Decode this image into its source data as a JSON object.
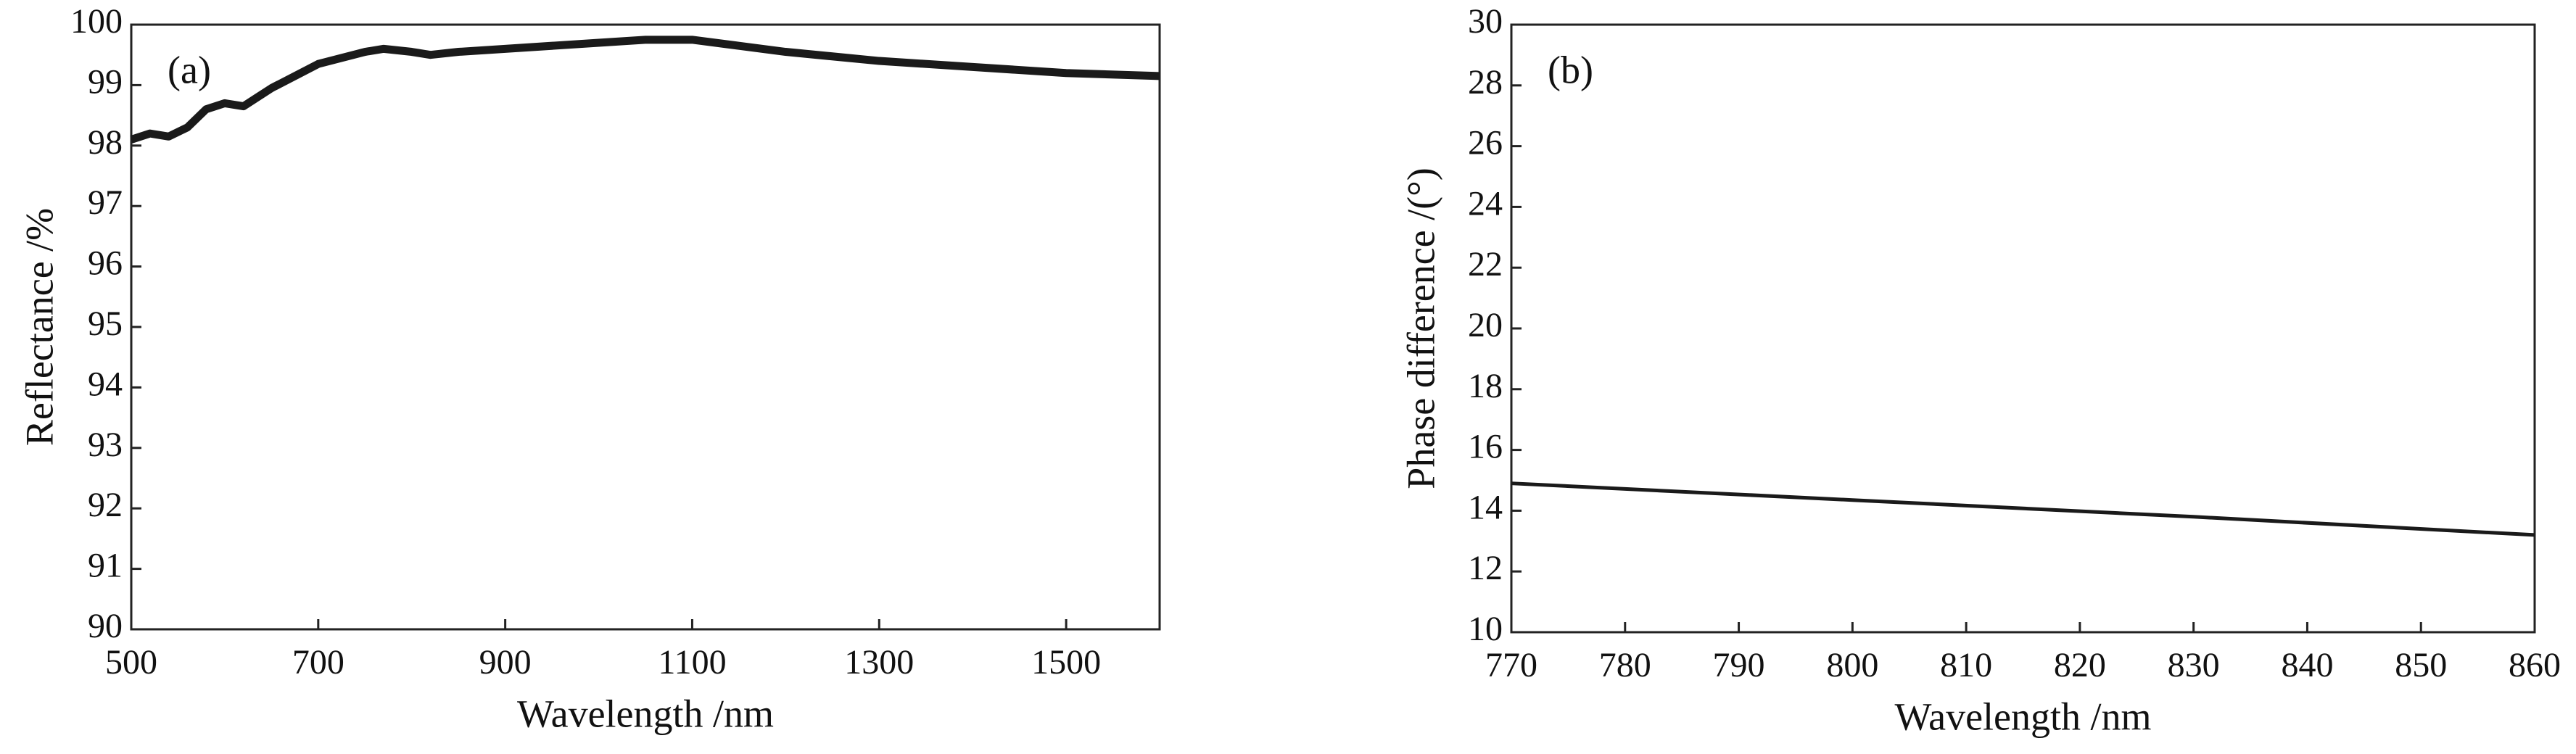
{
  "chart_data": [
    {
      "type": "line",
      "annotation": "(a)",
      "xlabel": "Wavelength /nm",
      "ylabel": "Reflectance /%",
      "xlim": [
        500,
        1600
      ],
      "xticks": [
        500,
        700,
        900,
        1100,
        1300,
        1500
      ],
      "ylim": [
        90,
        100
      ],
      "yticks": [
        90,
        91,
        92,
        93,
        94,
        95,
        96,
        97,
        98,
        99,
        100
      ],
      "x": [
        500,
        520,
        540,
        560,
        580,
        600,
        620,
        650,
        700,
        750,
        770,
        800,
        820,
        850,
        900,
        1000,
        1050,
        1100,
        1150,
        1200,
        1300,
        1400,
        1500,
        1600
      ],
      "series": [
        {
          "color": "#1a1a1a",
          "values": [
            98.1,
            98.2,
            98.15,
            98.3,
            98.6,
            98.7,
            98.65,
            98.95,
            99.35,
            99.55,
            99.6,
            99.55,
            99.5,
            99.55,
            99.6,
            99.7,
            99.75,
            99.75,
            99.65,
            99.55,
            99.4,
            99.3,
            99.2,
            99.15
          ]
        }
      ]
    },
    {
      "type": "line",
      "annotation": "(b)",
      "xlabel": "Wavelength /nm",
      "ylabel": "Phase difference /(°)",
      "xlim": [
        770,
        860
      ],
      "xticks": [
        770,
        780,
        790,
        800,
        810,
        820,
        830,
        840,
        850,
        860
      ],
      "ylim": [
        10,
        30
      ],
      "yticks": [
        10,
        12,
        14,
        16,
        18,
        20,
        22,
        24,
        26,
        28,
        30
      ],
      "x": [
        770,
        800,
        830,
        860
      ],
      "series": [
        {
          "color": "#1a1a1a",
          "values": [
            14.9,
            14.35,
            13.8,
            13.2
          ]
        }
      ]
    }
  ]
}
